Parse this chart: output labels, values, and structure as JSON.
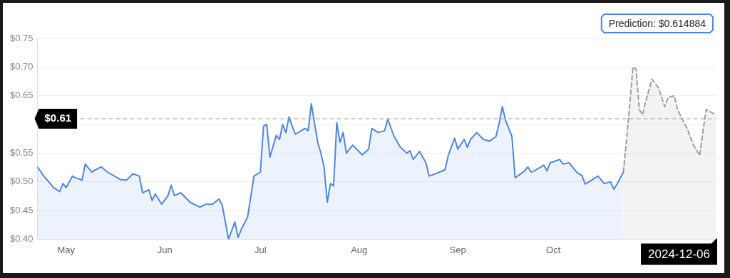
{
  "chart_data": {
    "type": "area",
    "xlim": [
      "2024-04-22",
      "2024-11-21"
    ],
    "xticks": [
      {
        "value": "2024-05-01",
        "label": "May"
      },
      {
        "value": "2024-06-01",
        "label": "Jun"
      },
      {
        "value": "2024-07-01",
        "label": "Jul"
      },
      {
        "value": "2024-08-01",
        "label": "Aug"
      },
      {
        "value": "2024-09-01",
        "label": "Sep"
      },
      {
        "value": "2024-10-01",
        "label": "Oct"
      }
    ],
    "ylim": [
      0.4,
      0.75
    ],
    "yticks": [
      {
        "value": 0.4,
        "label": "$0.40"
      },
      {
        "value": 0.45,
        "label": "$0.45"
      },
      {
        "value": 0.5,
        "label": "$0.50"
      },
      {
        "value": 0.55,
        "label": "$0.55"
      },
      {
        "value": 0.6,
        "label": null
      },
      {
        "value": 0.65,
        "label": "$0.65"
      },
      {
        "value": 0.7,
        "label": "$0.70"
      },
      {
        "value": 0.75,
        "label": "$0.75"
      }
    ],
    "grid": "y",
    "legend": false,
    "marker": "none",
    "series": [
      {
        "type": "area",
        "color": "#4f86e0",
        "line_style": "solid",
        "x": [
          "2024-04-22",
          "2024-04-24",
          "2024-04-26",
          "2024-04-27",
          "2024-04-29",
          "2024-04-30",
          "2024-05-01",
          "2024-05-03",
          "2024-05-04",
          "2024-05-06",
          "2024-05-07",
          "2024-05-09",
          "2024-05-12",
          "2024-05-14",
          "2024-05-18",
          "2024-05-20",
          "2024-05-22",
          "2024-05-24",
          "2024-05-25",
          "2024-05-27",
          "2024-05-28",
          "2024-05-29",
          "2024-05-31",
          "2024-06-02",
          "2024-06-03",
          "2024-06-04",
          "2024-06-06",
          "2024-06-09",
          "2024-06-12",
          "2024-06-14",
          "2024-06-16",
          "2024-06-18",
          "2024-06-19",
          "2024-06-21",
          "2024-06-23",
          "2024-06-24",
          "2024-06-25",
          "2024-06-27",
          "2024-06-29",
          "2024-07-01",
          "2024-07-02",
          "2024-07-03",
          "2024-07-04",
          "2024-07-06",
          "2024-07-07",
          "2024-07-08",
          "2024-07-09",
          "2024-07-10",
          "2024-07-11",
          "2024-07-12",
          "2024-07-15",
          "2024-07-16",
          "2024-07-17",
          "2024-07-19",
          "2024-07-20",
          "2024-07-21",
          "2024-07-22",
          "2024-07-23",
          "2024-07-24",
          "2024-07-25",
          "2024-07-26",
          "2024-07-27",
          "2024-07-28",
          "2024-07-30",
          "2024-08-02",
          "2024-08-04",
          "2024-08-05",
          "2024-08-07",
          "2024-08-09",
          "2024-08-10",
          "2024-08-12",
          "2024-08-14",
          "2024-08-16",
          "2024-08-17",
          "2024-08-18",
          "2024-08-20",
          "2024-08-22",
          "2024-08-23",
          "2024-08-25",
          "2024-08-28",
          "2024-08-29",
          "2024-08-31",
          "2024-09-01",
          "2024-09-03",
          "2024-09-04",
          "2024-09-05",
          "2024-09-07",
          "2024-09-09",
          "2024-09-11",
          "2024-09-13",
          "2024-09-14",
          "2024-09-15",
          "2024-09-16",
          "2024-09-18",
          "2024-09-19",
          "2024-09-22",
          "2024-09-23",
          "2024-09-24",
          "2024-09-25",
          "2024-09-28",
          "2024-09-29",
          "2024-09-30",
          "2024-10-03",
          "2024-10-04",
          "2024-10-06",
          "2024-10-08",
          "2024-10-09",
          "2024-10-10",
          "2024-10-11",
          "2024-10-13",
          "2024-10-15",
          "2024-10-17",
          "2024-10-19",
          "2024-10-20",
          "2024-10-21",
          "2024-10-23"
        ],
        "values": [
          0.526,
          0.51,
          0.497,
          0.49,
          0.483,
          0.497,
          0.49,
          0.51,
          0.507,
          0.503,
          0.531,
          0.517,
          0.526,
          0.517,
          0.504,
          0.503,
          0.514,
          0.51,
          0.481,
          0.486,
          0.467,
          0.479,
          0.461,
          0.476,
          0.494,
          0.476,
          0.481,
          0.464,
          0.456,
          0.461,
          0.461,
          0.47,
          0.46,
          0.4,
          0.43,
          0.403,
          0.417,
          0.439,
          0.51,
          0.517,
          0.597,
          0.6,
          0.543,
          0.581,
          0.574,
          0.6,
          0.586,
          0.613,
          0.597,
          0.583,
          0.593,
          0.589,
          0.636,
          0.569,
          0.55,
          0.526,
          0.464,
          0.497,
          0.493,
          0.603,
          0.569,
          0.586,
          0.55,
          0.564,
          0.547,
          0.557,
          0.593,
          0.586,
          0.589,
          0.609,
          0.579,
          0.56,
          0.55,
          0.554,
          0.539,
          0.553,
          0.533,
          0.51,
          0.514,
          0.521,
          0.546,
          0.576,
          0.557,
          0.574,
          0.56,
          0.574,
          0.586,
          0.574,
          0.571,
          0.579,
          0.603,
          0.631,
          0.607,
          0.579,
          0.507,
          0.519,
          0.526,
          0.517,
          0.519,
          0.529,
          0.519,
          0.533,
          0.539,
          0.531,
          0.533,
          0.519,
          0.514,
          0.511,
          0.496,
          0.503,
          0.51,
          0.497,
          0.5,
          0.487,
          0.496,
          0.517
        ]
      },
      {
        "type": "area",
        "color": "#9e9e9e",
        "line_style": "dashed",
        "x": [
          "2024-10-23",
          "2024-10-24",
          "2024-10-25",
          "2024-10-26",
          "2024-10-27",
          "2024-10-28",
          "2024-10-29",
          "2024-10-30",
          "2024-11-01",
          "2024-11-03",
          "2024-11-05",
          "2024-11-06",
          "2024-11-08",
          "2024-11-09",
          "2024-11-12",
          "2024-11-14",
          "2024-11-16",
          "2024-11-17",
          "2024-11-18",
          "2024-11-21"
        ],
        "values": [
          0.517,
          0.574,
          0.636,
          0.7,
          0.696,
          0.626,
          0.617,
          0.64,
          0.679,
          0.664,
          0.631,
          0.647,
          0.65,
          0.626,
          0.593,
          0.564,
          0.546,
          0.589,
          0.626,
          0.617
        ]
      }
    ],
    "ref_lines": [
      {
        "axis": "y",
        "value": 0.61,
        "label": "$0.61",
        "color": "#9e9e9e",
        "line_style": "dashed"
      }
    ],
    "annotations": [
      "Prediction: $0.614884",
      "2024-12-06"
    ]
  }
}
